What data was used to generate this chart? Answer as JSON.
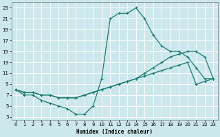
{
  "xlabel": "Humidex (Indice chaleur)",
  "bg_color": "#cce8ec",
  "grid_color": "#ffffff",
  "line_color": "#1a7a6e",
  "xlim": [
    -0.5,
    23.5
  ],
  "ylim": [
    2.5,
    24
  ],
  "xticks": [
    0,
    1,
    2,
    3,
    4,
    5,
    6,
    7,
    8,
    9,
    10,
    11,
    12,
    13,
    14,
    15,
    16,
    17,
    18,
    19,
    20,
    21,
    22,
    23
  ],
  "yticks": [
    3,
    5,
    7,
    9,
    11,
    13,
    15,
    17,
    19,
    21,
    23
  ],
  "line1_x": [
    0,
    1,
    2,
    3,
    4,
    5,
    6,
    7,
    8,
    9,
    10,
    11,
    12,
    13,
    14,
    15,
    16,
    17,
    18,
    19,
    20,
    21,
    22,
    23
  ],
  "line1_y": [
    8,
    7,
    7,
    6,
    5.5,
    5,
    4.5,
    3.5,
    3.5,
    5,
    10,
    21,
    22,
    22,
    23,
    21,
    18,
    16,
    15,
    15,
    14,
    12,
    10,
    10
  ],
  "line2_x": [
    0,
    1,
    2,
    3,
    4,
    5,
    6,
    7,
    8,
    9,
    10,
    11,
    12,
    13,
    14,
    15,
    16,
    17,
    18,
    19,
    20,
    21,
    22,
    23
  ],
  "line2_y": [
    8,
    7.5,
    7.5,
    7,
    7,
    6.5,
    6.5,
    6.5,
    7,
    7.5,
    8,
    8.5,
    9,
    9.5,
    10,
    10.5,
    11,
    11.5,
    12,
    12.5,
    13,
    9,
    9.5,
    10
  ],
  "line3_x": [
    0,
    1,
    2,
    3,
    4,
    5,
    6,
    7,
    8,
    9,
    10,
    11,
    12,
    13,
    14,
    15,
    16,
    17,
    18,
    19,
    20,
    21,
    22,
    23
  ],
  "line3_y": [
    8,
    7.5,
    7.5,
    7,
    7,
    6.5,
    6.5,
    6.5,
    7,
    7.5,
    8,
    8.5,
    9,
    9.5,
    10,
    11,
    12,
    13,
    14,
    14.5,
    15,
    15,
    14,
    10
  ]
}
